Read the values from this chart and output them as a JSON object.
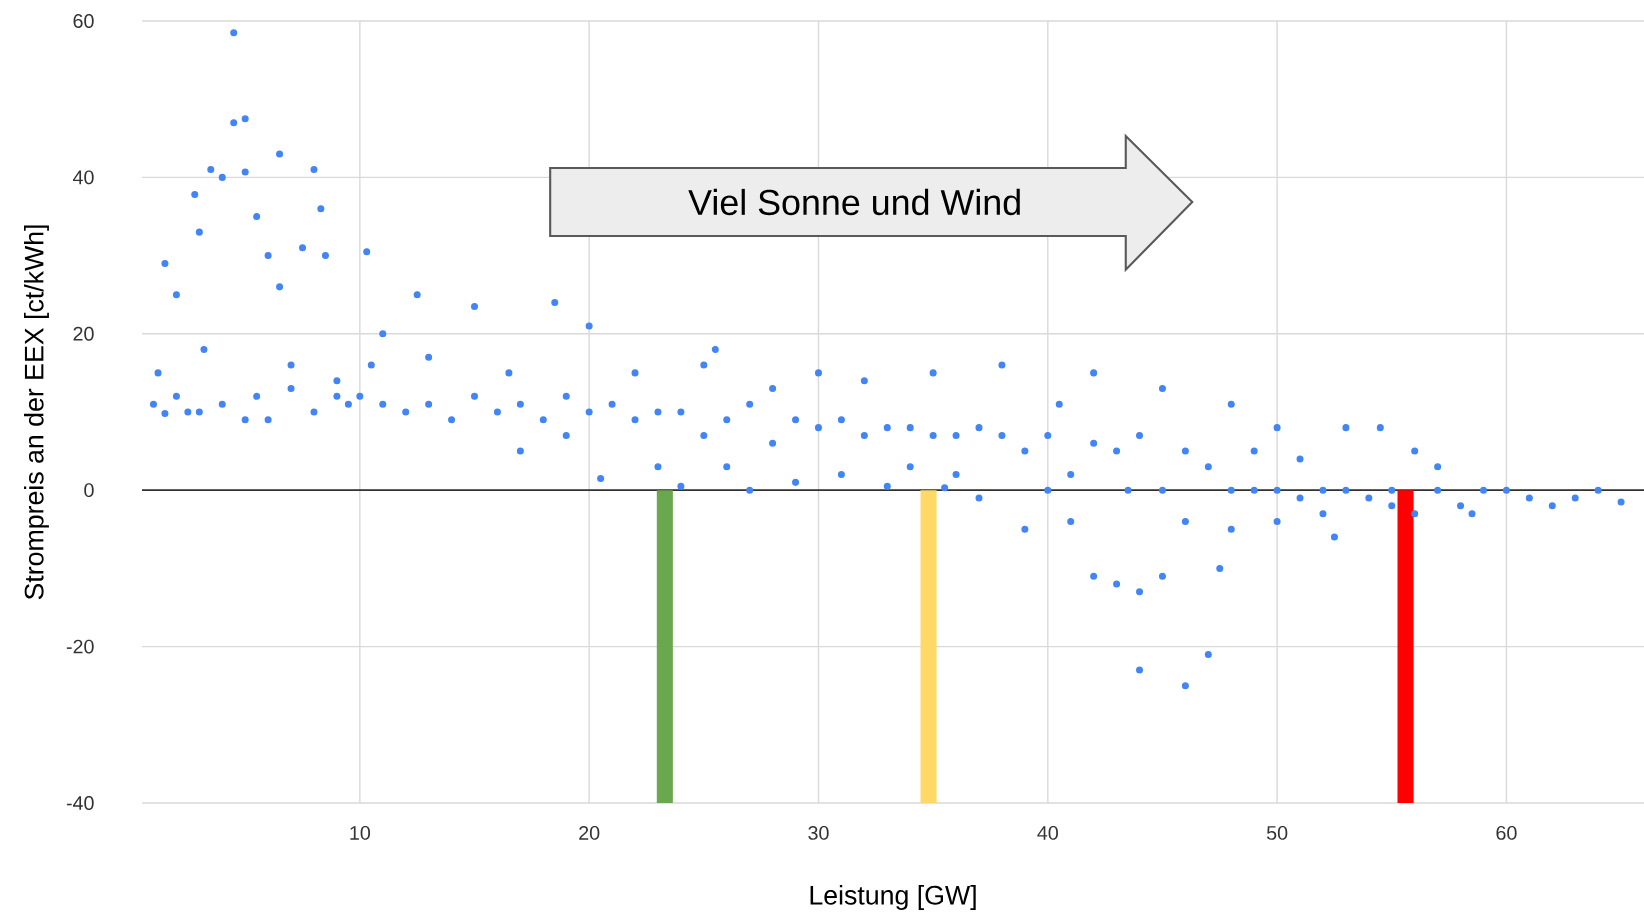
{
  "chart_data": {
    "type": "scatter",
    "xlabel": "Leistung [GW]",
    "ylabel": "Strompreis an der EEX [ct/kWh]",
    "xlim": [
      0.5,
      66
    ],
    "ylim": [
      -40,
      60
    ],
    "xticks": [
      10,
      20,
      30,
      40,
      50,
      60
    ],
    "yticks": [
      -40,
      -20,
      0,
      20,
      40,
      60
    ],
    "grid": true,
    "annotations": [
      "Viel Sonne und Wind"
    ],
    "ref_lines": [
      {
        "axis": "y",
        "value": 0,
        "color": "#333333"
      }
    ],
    "series": [
      {
        "color": "#4285f4",
        "x": [
          1,
          1.2,
          1.5,
          1.5,
          2,
          2,
          2.5,
          2.8,
          3,
          3,
          3.2,
          3.5,
          4,
          4,
          4.5,
          4.5,
          5,
          5,
          5,
          5.5,
          5.5,
          6,
          6,
          6.5,
          6.5,
          7,
          7,
          7.5,
          8,
          8,
          8.3,
          8.5,
          9,
          9,
          9.5,
          10,
          10.3,
          10.5,
          11,
          11,
          12,
          12.5,
          13,
          13,
          14,
          15,
          15,
          16,
          16.5,
          17,
          17,
          18,
          18.5,
          19,
          19,
          20,
          20,
          20.5,
          21,
          22,
          22,
          23,
          23,
          24,
          24,
          25,
          25,
          25.5,
          26,
          26,
          27,
          27,
          28,
          28,
          29,
          29,
          30,
          30,
          31,
          31,
          32,
          32,
          33,
          33,
          34,
          34,
          35,
          35,
          35.5,
          36,
          36,
          37,
          37,
          38,
          38,
          39,
          39,
          40,
          40,
          40.5,
          41,
          41,
          42,
          42,
          42,
          43,
          43,
          43.5,
          44,
          44,
          44,
          45,
          45,
          45,
          46,
          46,
          46,
          47,
          47,
          47.5,
          48,
          48,
          48,
          49,
          49,
          50,
          50,
          50,
          51,
          51,
          52,
          52,
          52.5,
          53,
          53,
          54,
          54.5,
          55,
          55,
          56,
          56,
          57,
          57,
          58,
          58.5,
          59,
          60,
          61,
          62,
          63,
          64,
          65
        ],
        "values": [
          11,
          15,
          29,
          9.8,
          12,
          25,
          10,
          37.8,
          33,
          10,
          18,
          41,
          11,
          40,
          58.5,
          47,
          47.5,
          9,
          40.7,
          12,
          35,
          9,
          30,
          43,
          26,
          13,
          16,
          31,
          41,
          10,
          36,
          30,
          14,
          12,
          11,
          12,
          30.5,
          16,
          11,
          20,
          10,
          25,
          11,
          17,
          9,
          12,
          23.5,
          10,
          15,
          11,
          5,
          9,
          24,
          12,
          7,
          10,
          21,
          1.5,
          11,
          9,
          15,
          10,
          3,
          10,
          0.5,
          7,
          16,
          18,
          9,
          3,
          11,
          0,
          6,
          13,
          9,
          1,
          8,
          15,
          9,
          2,
          7,
          14,
          8,
          0.5,
          8,
          3,
          7,
          15,
          0.3,
          7,
          2,
          8,
          -1,
          7,
          16,
          5,
          -5,
          7,
          0,
          11,
          2,
          -4,
          6,
          15,
          -11,
          -12,
          5,
          0,
          7,
          -13,
          -23,
          13,
          0,
          -11,
          -25,
          5,
          -4,
          3,
          -21,
          -10,
          11,
          0,
          -5,
          5,
          0,
          8,
          0,
          -4,
          4,
          -1,
          0,
          -3,
          -6,
          8,
          0,
          -1,
          8,
          0,
          -2,
          5,
          -3,
          3,
          0,
          -2,
          -3,
          0,
          0,
          -1,
          -2,
          -1,
          0,
          -1.5
        ]
      },
      {
        "type": "bar",
        "x": [
          23.3,
          34.8,
          55.6
        ],
        "values": [
          -40,
          -40,
          -40
        ],
        "colors": [
          "#6aa84f",
          "#ffd966",
          "#ff0000"
        ]
      }
    ]
  }
}
